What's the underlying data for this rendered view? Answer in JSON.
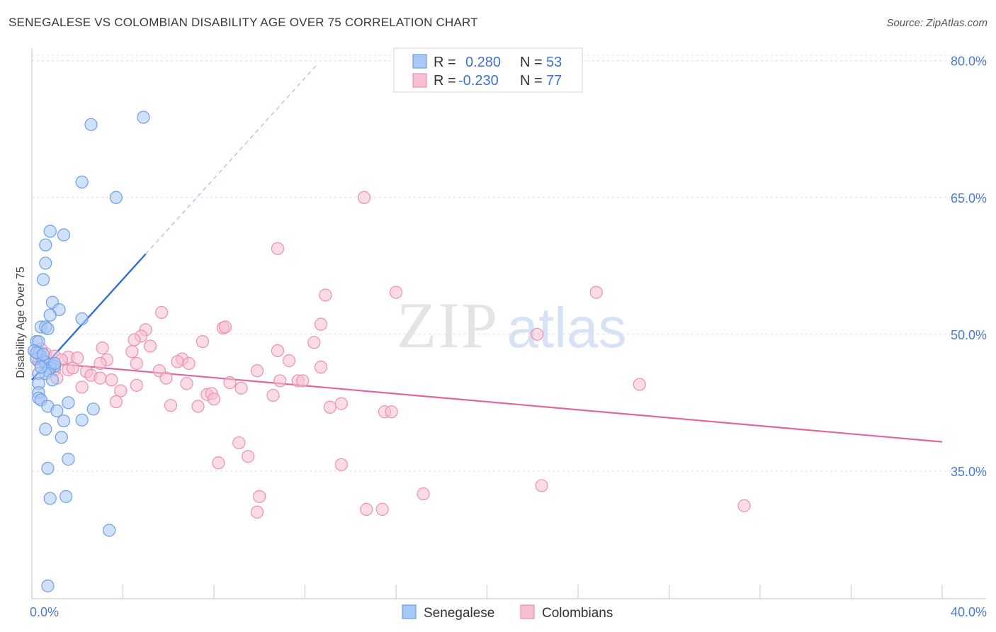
{
  "title": "SENEGALESE VS COLOMBIAN DISABILITY AGE OVER 75 CORRELATION CHART",
  "source": "Source: ZipAtlas.com",
  "colors": {
    "senegalese_fill": "#a9c8f5",
    "senegalese_stroke": "#6f9de6",
    "senegalese_line": "#2d6fd6",
    "colombian_fill": "#f8bfd2",
    "colombian_stroke": "#ec8fb0",
    "colombian_line": "#e0679a",
    "accent_text": "#3d73d0"
  },
  "legend": {
    "r_label": "R =",
    "n_label": "N =",
    "rows": [
      {
        "series": "Senegalese",
        "r": "0.280",
        "n": "53"
      },
      {
        "series": "Colombians",
        "r": "-0.230",
        "n": "77"
      }
    ]
  },
  "bottom_legend": [
    "Senegalese",
    "Colombians"
  ],
  "chart_data": {
    "type": "scatter",
    "title": "SENEGALESE VS COLOMBIAN DISABILITY AGE OVER 75 CORRELATION CHART",
    "xlabel": "",
    "ylabel": "Disability Age Over 75",
    "xlim": [
      0,
      40
    ],
    "ylim": [
      21,
      82
    ],
    "x_ticks": [
      {
        "value": 0,
        "label": "0.0%"
      },
      {
        "value": 40,
        "label": "40.0%"
      }
    ],
    "y_ticks": [
      {
        "value": 35,
        "label": "35.0%"
      },
      {
        "value": 50,
        "label": "50.0%"
      },
      {
        "value": 65,
        "label": "65.0%"
      },
      {
        "value": 80,
        "label": "80.0%"
      }
    ],
    "grid": true,
    "legend_position": "top-center",
    "series": [
      {
        "name": "Senegalese",
        "points": [
          [
            2.6,
            73.0
          ],
          [
            4.9,
            73.8
          ],
          [
            2.2,
            66.7
          ],
          [
            3.7,
            65.0
          ],
          [
            0.8,
            61.3
          ],
          [
            1.4,
            60.9
          ],
          [
            0.6,
            59.8
          ],
          [
            0.6,
            57.8
          ],
          [
            0.5,
            56.0
          ],
          [
            0.9,
            53.5
          ],
          [
            1.2,
            52.7
          ],
          [
            0.8,
            52.1
          ],
          [
            2.2,
            51.7
          ],
          [
            0.4,
            50.8
          ],
          [
            0.6,
            50.8
          ],
          [
            0.7,
            50.6
          ],
          [
            0.2,
            49.2
          ],
          [
            0.3,
            49.2
          ],
          [
            0.1,
            48.2
          ],
          [
            0.3,
            47.9
          ],
          [
            0.4,
            47.6
          ],
          [
            0.2,
            47.3
          ],
          [
            0.5,
            47.1
          ],
          [
            0.6,
            46.9
          ],
          [
            0.8,
            46.7
          ],
          [
            1.0,
            46.5
          ],
          [
            0.8,
            46.3
          ],
          [
            0.7,
            46.0
          ],
          [
            0.6,
            45.7
          ],
          [
            0.3,
            45.7
          ],
          [
            0.9,
            45.0
          ],
          [
            0.3,
            44.6
          ],
          [
            0.3,
            43.6
          ],
          [
            0.3,
            43.0
          ],
          [
            0.4,
            42.8
          ],
          [
            1.6,
            42.5
          ],
          [
            0.7,
            42.1
          ],
          [
            2.7,
            41.8
          ],
          [
            1.1,
            41.6
          ],
          [
            1.4,
            40.5
          ],
          [
            2.2,
            40.6
          ],
          [
            0.6,
            39.6
          ],
          [
            1.3,
            38.7
          ],
          [
            1.6,
            36.3
          ],
          [
            0.7,
            35.3
          ],
          [
            1.5,
            32.2
          ],
          [
            0.8,
            32.0
          ],
          [
            3.4,
            28.5
          ],
          [
            0.7,
            22.4
          ],
          [
            0.2,
            48.0
          ],
          [
            0.4,
            46.4
          ],
          [
            0.5,
            47.8
          ],
          [
            1.0,
            46.8
          ]
        ],
        "trend": {
          "x": [
            0,
            5.0
          ],
          "y": [
            45.0,
            58.8
          ],
          "dashed_to": [
            12.5,
            79.5
          ]
        }
      },
      {
        "name": "Colombians",
        "points": [
          [
            14.6,
            65.0
          ],
          [
            10.8,
            59.4
          ],
          [
            12.9,
            54.3
          ],
          [
            16.0,
            54.6
          ],
          [
            24.8,
            54.6
          ],
          [
            5.7,
            52.4
          ],
          [
            12.7,
            51.1
          ],
          [
            8.4,
            50.7
          ],
          [
            8.5,
            50.8
          ],
          [
            5.0,
            50.5
          ],
          [
            22.2,
            50.0
          ],
          [
            4.8,
            49.8
          ],
          [
            4.5,
            49.4
          ],
          [
            7.5,
            49.2
          ],
          [
            12.4,
            49.1
          ],
          [
            5.2,
            48.7
          ],
          [
            3.1,
            48.5
          ],
          [
            4.4,
            48.1
          ],
          [
            10.8,
            48.2
          ],
          [
            0.6,
            47.9
          ],
          [
            1.0,
            47.6
          ],
          [
            1.6,
            47.5
          ],
          [
            1.3,
            47.2
          ],
          [
            3.3,
            47.2
          ],
          [
            6.6,
            47.3
          ],
          [
            6.4,
            47.0
          ],
          [
            6.9,
            46.8
          ],
          [
            11.3,
            47.1
          ],
          [
            3.0,
            46.8
          ],
          [
            4.6,
            46.8
          ],
          [
            12.7,
            46.4
          ],
          [
            1.0,
            46.1
          ],
          [
            1.6,
            46.1
          ],
          [
            2.4,
            45.9
          ],
          [
            9.9,
            46.0
          ],
          [
            5.6,
            46.0
          ],
          [
            2.6,
            45.5
          ],
          [
            3.0,
            45.2
          ],
          [
            1.1,
            45.2
          ],
          [
            5.9,
            45.2
          ],
          [
            3.5,
            45.0
          ],
          [
            8.7,
            44.7
          ],
          [
            10.9,
            44.9
          ],
          [
            11.7,
            44.9
          ],
          [
            11.9,
            44.9
          ],
          [
            6.8,
            44.6
          ],
          [
            4.6,
            44.4
          ],
          [
            2.2,
            44.2
          ],
          [
            9.2,
            44.1
          ],
          [
            26.7,
            44.5
          ],
          [
            3.9,
            43.8
          ],
          [
            7.7,
            43.4
          ],
          [
            7.9,
            43.5
          ],
          [
            10.6,
            43.3
          ],
          [
            8.0,
            42.9
          ],
          [
            3.7,
            42.6
          ],
          [
            13.6,
            42.4
          ],
          [
            6.1,
            42.2
          ],
          [
            7.3,
            42.1
          ],
          [
            13.1,
            42.0
          ],
          [
            15.5,
            41.5
          ],
          [
            15.8,
            41.5
          ],
          [
            9.1,
            38.1
          ],
          [
            9.5,
            36.6
          ],
          [
            8.2,
            35.9
          ],
          [
            13.6,
            35.7
          ],
          [
            22.4,
            33.4
          ],
          [
            17.2,
            32.5
          ],
          [
            10.0,
            32.2
          ],
          [
            31.3,
            31.2
          ],
          [
            14.7,
            30.8
          ],
          [
            15.4,
            30.8
          ],
          [
            9.9,
            30.5
          ],
          [
            0.3,
            47.0
          ],
          [
            2.0,
            47.4
          ],
          [
            1.8,
            46.3
          ],
          [
            0.4,
            48.4
          ]
        ],
        "trend": {
          "x": [
            0,
            40
          ],
          "y": [
            47.0,
            38.2
          ]
        }
      }
    ]
  }
}
